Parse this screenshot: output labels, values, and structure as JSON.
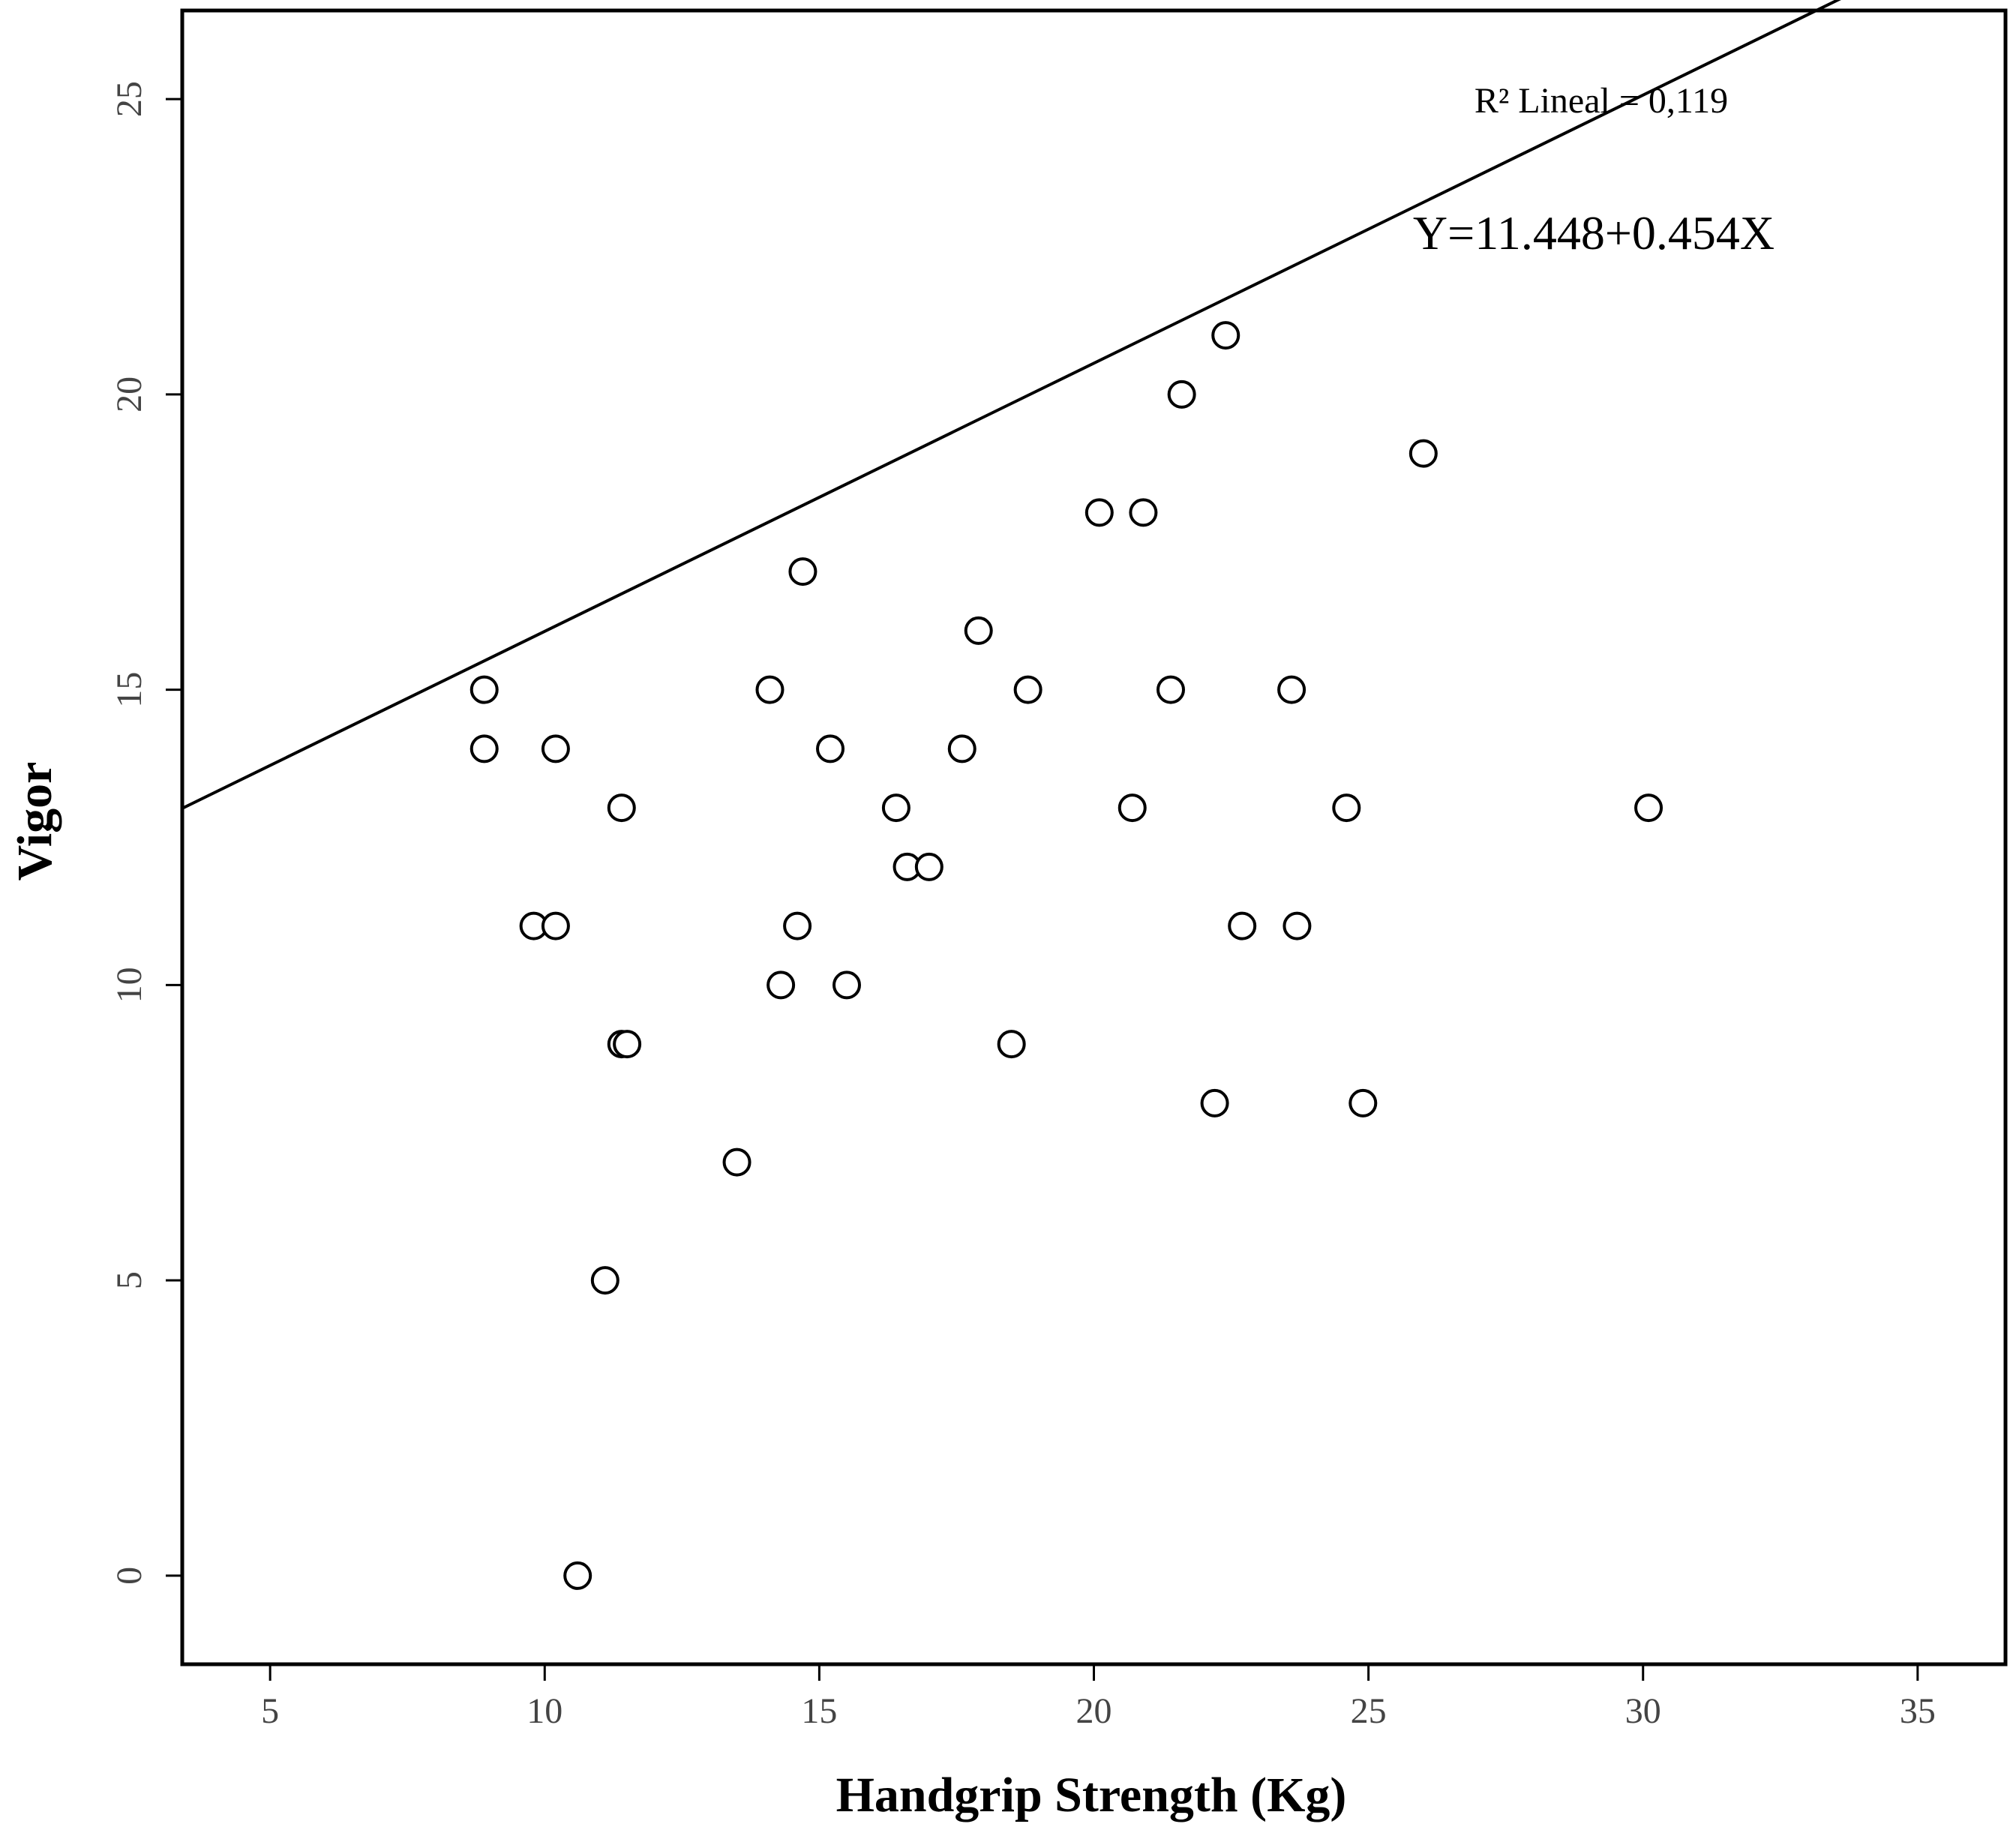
{
  "chart_data": {
    "type": "scatter",
    "xlabel": "Handgrip Strength (Kg)",
    "ylabel": "Vigor",
    "xlim": [
      3.4,
      36.6
    ],
    "ylim": [
      -1.5,
      26.5
    ],
    "xticks": [
      5,
      10,
      15,
      20,
      25,
      30,
      35
    ],
    "yticks": [
      0,
      5,
      10,
      15,
      20,
      25
    ],
    "grid": false,
    "annotations": {
      "r2": "R² Lineal = 0,119",
      "equation": "Y=11.448+0.454X"
    },
    "fit_line": {
      "intercept": 11.448,
      "slope": 0.454
    },
    "points": [
      {
        "x": 8.9,
        "y": 15
      },
      {
        "x": 8.9,
        "y": 14
      },
      {
        "x": 10.2,
        "y": 14
      },
      {
        "x": 9.8,
        "y": 11
      },
      {
        "x": 10.2,
        "y": 11
      },
      {
        "x": 11.4,
        "y": 13
      },
      {
        "x": 11.4,
        "y": 9
      },
      {
        "x": 11.5,
        "y": 9
      },
      {
        "x": 11.1,
        "y": 5
      },
      {
        "x": 10.6,
        "y": 0
      },
      {
        "x": 13.5,
        "y": 7
      },
      {
        "x": 14.1,
        "y": 15
      },
      {
        "x": 14.7,
        "y": 17
      },
      {
        "x": 15.2,
        "y": 14
      },
      {
        "x": 14.3,
        "y": 10
      },
      {
        "x": 14.6,
        "y": 11
      },
      {
        "x": 15.5,
        "y": 10
      },
      {
        "x": 16.4,
        "y": 13
      },
      {
        "x": 16.6,
        "y": 12
      },
      {
        "x": 17.0,
        "y": 12
      },
      {
        "x": 17.6,
        "y": 14
      },
      {
        "x": 17.9,
        "y": 16
      },
      {
        "x": 18.5,
        "y": 9
      },
      {
        "x": 18.8,
        "y": 15
      },
      {
        "x": 20.1,
        "y": 18
      },
      {
        "x": 20.9,
        "y": 18
      },
      {
        "x": 20.7,
        "y": 13
      },
      {
        "x": 21.4,
        "y": 15
      },
      {
        "x": 21.6,
        "y": 20
      },
      {
        "x": 22.4,
        "y": 21
      },
      {
        "x": 22.2,
        "y": 8
      },
      {
        "x": 22.7,
        "y": 11
      },
      {
        "x": 23.6,
        "y": 15
      },
      {
        "x": 23.7,
        "y": 11
      },
      {
        "x": 24.6,
        "y": 13
      },
      {
        "x": 24.9,
        "y": 8
      },
      {
        "x": 26.0,
        "y": 19
      },
      {
        "x": 30.1,
        "y": 13
      }
    ]
  }
}
